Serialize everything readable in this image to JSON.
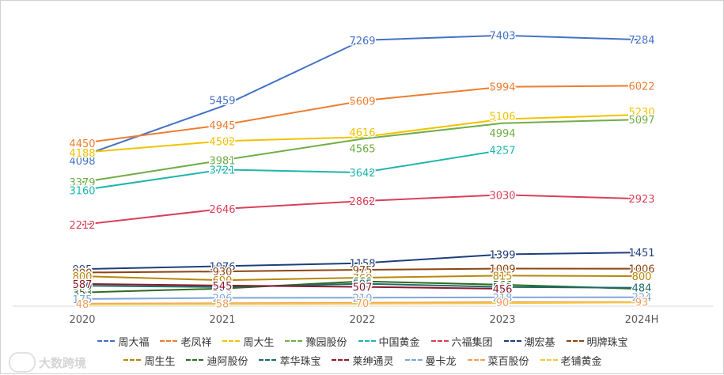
{
  "chart_data": {
    "type": "line",
    "categories": [
      "2020",
      "2021",
      "2022",
      "2023",
      "2024H"
    ],
    "ylim": [
      0,
      7700
    ],
    "grid": false,
    "legend": "bottom",
    "series": [
      {
        "name": "周大福",
        "color": "#4472C4",
        "values": [
          4098,
          5459,
          7269,
          7403,
          7284
        ]
      },
      {
        "name": "老凤祥",
        "color": "#ED7D31",
        "values": [
          4450,
          4945,
          5609,
          5994,
          6022
        ]
      },
      {
        "name": "周大生",
        "color": "#F2C200",
        "values": [
          4188,
          4502,
          4616,
          5106,
          5230
        ]
      },
      {
        "name": "豫园股份",
        "color": "#70AD47",
        "values": [
          3379,
          3981,
          4565,
          4994,
          5097
        ]
      },
      {
        "name": "中国黄金",
        "color": "#1FB5AC",
        "values": [
          3160,
          3721,
          3642,
          4257,
          null
        ]
      },
      {
        "name": "六福集团",
        "color": "#D9405A",
        "values": [
          2212,
          2646,
          2862,
          3030,
          2923
        ]
      },
      {
        "name": "潮宏基",
        "color": "#1F3E7A",
        "values": [
          995,
          1076,
          1158,
          1399,
          1451
        ]
      },
      {
        "name": "明牌珠宝",
        "color": "#8B4513",
        "values": [
          900,
          930,
          975,
          1009,
          1006
        ]
      },
      {
        "name": "周生生",
        "color": "#B8860B",
        "values": [
          800,
          690,
          760,
          815,
          800
        ]
      },
      {
        "name": "迪阿股份",
        "color": "#2E6B1F",
        "values": [
          353,
          461,
          660,
          566,
          451
        ]
      },
      {
        "name": "萃华珠宝",
        "color": "#1D6B66",
        "values": [
          540,
          500,
          595,
          503,
          484
        ]
      },
      {
        "name": "莱绅通灵",
        "color": "#8B1A2E",
        "values": [
          587,
          545,
          507,
          456,
          null
        ]
      },
      {
        "name": "曼卡龙",
        "color": "#7FA7D8",
        "values": [
          175,
          206,
          210,
          218,
          224
        ]
      },
      {
        "name": "菜百股份",
        "color": "#F0A060",
        "values": [
          48,
          58,
          70,
          90,
          93
        ]
      },
      {
        "name": "老铺黄金",
        "color": "#F5C842",
        "values": [
          25,
          35,
          45,
          60,
          80
        ]
      }
    ],
    "data_labels": [
      {
        "series": 0,
        "x": 0,
        "text": "4098",
        "dx": 0,
        "dy": 6
      },
      {
        "series": 0,
        "x": 1,
        "text": "5459",
        "dx": 0,
        "dy": -8
      },
      {
        "series": 0,
        "x": 2,
        "text": "7269",
        "dx": 0,
        "dy": 0
      },
      {
        "series": 0,
        "x": 3,
        "text": "7403",
        "dx": 0,
        "dy": 0
      },
      {
        "series": 0,
        "x": 4,
        "text": "7284",
        "dx": 0,
        "dy": 0
      },
      {
        "series": 1,
        "x": 0,
        "text": "4450",
        "dx": 0,
        "dy": 0
      },
      {
        "series": 1,
        "x": 1,
        "text": "4945",
        "dx": 0,
        "dy": 0
      },
      {
        "series": 1,
        "x": 2,
        "text": "5609",
        "dx": 0,
        "dy": 0
      },
      {
        "series": 1,
        "x": 3,
        "text": "5994",
        "dx": 0,
        "dy": 0
      },
      {
        "series": 1,
        "x": 4,
        "text": "6022",
        "dx": 0,
        "dy": 0
      },
      {
        "series": 2,
        "x": 0,
        "text": "4188",
        "dx": 0,
        "dy": 0
      },
      {
        "series": 2,
        "x": 1,
        "text": "4502",
        "dx": 0,
        "dy": 0
      },
      {
        "series": 2,
        "x": 2,
        "text": "4616",
        "dx": 0,
        "dy": -6
      },
      {
        "series": 2,
        "x": 3,
        "text": "5106",
        "dx": 0,
        "dy": -4
      },
      {
        "series": 2,
        "x": 4,
        "text": "5230",
        "dx": 0,
        "dy": -4
      },
      {
        "series": 3,
        "x": 0,
        "text": "3379",
        "dx": 0,
        "dy": 0
      },
      {
        "series": 3,
        "x": 1,
        "text": "3981",
        "dx": 0,
        "dy": 0
      },
      {
        "series": 3,
        "x": 2,
        "text": "4565",
        "dx": 0,
        "dy": 12
      },
      {
        "series": 3,
        "x": 3,
        "text": "4994",
        "dx": 0,
        "dy": 12
      },
      {
        "series": 3,
        "x": 4,
        "text": "5097",
        "dx": 0,
        "dy": 0
      },
      {
        "series": 4,
        "x": 0,
        "text": "3160",
        "dx": 0,
        "dy": 0
      },
      {
        "series": 4,
        "x": 1,
        "text": "3721",
        "dx": 0,
        "dy": 0
      },
      {
        "series": 4,
        "x": 2,
        "text": "3642",
        "dx": 0,
        "dy": 0
      },
      {
        "series": 4,
        "x": 3,
        "text": "4257",
        "dx": 0,
        "dy": 0
      },
      {
        "series": 5,
        "x": 0,
        "text": "2212",
        "dx": 0,
        "dy": 0
      },
      {
        "series": 5,
        "x": 1,
        "text": "2646",
        "dx": 0,
        "dy": 0
      },
      {
        "series": 5,
        "x": 2,
        "text": "2862",
        "dx": 0,
        "dy": 0
      },
      {
        "series": 5,
        "x": 3,
        "text": "3030",
        "dx": 0,
        "dy": 0
      },
      {
        "series": 5,
        "x": 4,
        "text": "2923",
        "dx": 0,
        "dy": 0
      },
      {
        "series": 6,
        "x": 0,
        "text": "995",
        "dx": 0,
        "dy": 0
      },
      {
        "series": 6,
        "x": 1,
        "text": "1076",
        "dx": 0,
        "dy": 0
      },
      {
        "series": 6,
        "x": 2,
        "text": "1158",
        "dx": 0,
        "dy": 0
      },
      {
        "series": 6,
        "x": 3,
        "text": "1399",
        "dx": 0,
        "dy": 0
      },
      {
        "series": 6,
        "x": 4,
        "text": "1451",
        "dx": 0,
        "dy": 0
      },
      {
        "series": 7,
        "x": 0,
        "text": "900",
        "dx": 0,
        "dy": 0
      },
      {
        "series": 7,
        "x": 1,
        "text": "930",
        "dx": 0,
        "dy": 0
      },
      {
        "series": 7,
        "x": 2,
        "text": "975",
        "dx": 0,
        "dy": 0
      },
      {
        "series": 7,
        "x": 3,
        "text": "1009",
        "dx": 0,
        "dy": 0
      },
      {
        "series": 7,
        "x": 4,
        "text": "1006",
        "dx": 0,
        "dy": 0
      },
      {
        "series": 8,
        "x": 0,
        "text": "800",
        "dx": 0,
        "dy": 0
      },
      {
        "series": 8,
        "x": 1,
        "text": "690",
        "dx": 0,
        "dy": 0
      },
      {
        "series": 8,
        "x": 2,
        "text": "760",
        "dx": 0,
        "dy": 0
      },
      {
        "series": 8,
        "x": 3,
        "text": "815",
        "dx": 0,
        "dy": 0
      },
      {
        "series": 8,
        "x": 4,
        "text": "800",
        "dx": 0,
        "dy": 0
      },
      {
        "series": 9,
        "x": 0,
        "text": "353",
        "dx": 0,
        "dy": 0
      },
      {
        "series": 9,
        "x": 1,
        "text": "461",
        "dx": 0,
        "dy": 0
      },
      {
        "series": 9,
        "x": 2,
        "text": "660",
        "dx": 0,
        "dy": 0
      },
      {
        "series": 9,
        "x": 3,
        "text": "566",
        "dx": 0,
        "dy": 0
      },
      {
        "series": 9,
        "x": 4,
        "text": "451",
        "dx": 0,
        "dy": 0
      },
      {
        "series": 10,
        "x": 0,
        "text": "540",
        "dx": 0,
        "dy": 0
      },
      {
        "series": 10,
        "x": 1,
        "text": "500",
        "dx": 0,
        "dy": 0
      },
      {
        "series": 10,
        "x": 2,
        "text": "595",
        "dx": 0,
        "dy": 0
      },
      {
        "series": 10,
        "x": 3,
        "text": "503",
        "dx": 0,
        "dy": 0
      },
      {
        "series": 10,
        "x": 4,
        "text": "484",
        "dx": 0,
        "dy": 0
      },
      {
        "series": 11,
        "x": 0,
        "text": "587",
        "dx": 0,
        "dy": 0
      },
      {
        "series": 11,
        "x": 1,
        "text": "545",
        "dx": 0,
        "dy": 0
      },
      {
        "series": 11,
        "x": 2,
        "text": "507",
        "dx": 0,
        "dy": 0
      },
      {
        "series": 11,
        "x": 3,
        "text": "456",
        "dx": 0,
        "dy": 0
      },
      {
        "series": 12,
        "x": 0,
        "text": "175",
        "dx": 0,
        "dy": 0
      },
      {
        "series": 12,
        "x": 1,
        "text": "206",
        "dx": 0,
        "dy": 0
      },
      {
        "series": 12,
        "x": 2,
        "text": "210",
        "dx": 0,
        "dy": 0
      },
      {
        "series": 12,
        "x": 3,
        "text": "218",
        "dx": 0,
        "dy": 0
      },
      {
        "series": 12,
        "x": 4,
        "text": "224",
        "dx": 0,
        "dy": 0
      },
      {
        "series": 13,
        "x": 0,
        "text": "48",
        "dx": 0,
        "dy": 0
      },
      {
        "series": 13,
        "x": 1,
        "text": "58",
        "dx": 0,
        "dy": 0
      },
      {
        "series": 13,
        "x": 2,
        "text": "70",
        "dx": 0,
        "dy": 0
      },
      {
        "series": 13,
        "x": 3,
        "text": "90",
        "dx": 0,
        "dy": 0
      },
      {
        "series": 13,
        "x": 4,
        "text": "93",
        "dx": 0,
        "dy": 0
      }
    ]
  },
  "watermark": {
    "text": "大数跨境"
  }
}
